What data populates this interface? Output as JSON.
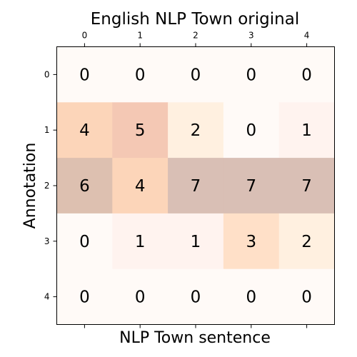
{
  "chart_data": {
    "type": "heatmap",
    "title": "English NLP Town original",
    "xlabel": "NLP Town sentence",
    "ylabel": "Annotation",
    "x_categories": [
      "0",
      "1",
      "2",
      "3",
      "4"
    ],
    "y_categories": [
      "0",
      "1",
      "2",
      "3",
      "4"
    ],
    "x_ticks_position": "top",
    "values": [
      [
        0,
        0,
        0,
        0,
        0
      ],
      [
        4,
        5,
        2,
        0,
        1
      ],
      [
        6,
        4,
        7,
        7,
        7
      ],
      [
        0,
        1,
        1,
        3,
        2
      ],
      [
        0,
        0,
        0,
        0,
        0
      ]
    ],
    "colors": {
      "0": "#fffaf7",
      "1": "#fff3ef",
      "2": "#fff0e0",
      "3": "#ffe0c8",
      "4": "#fcd5b9",
      "5": "#f4c8b4",
      "6": "#ddc0b0",
      "7": "#d9bfb5"
    }
  }
}
